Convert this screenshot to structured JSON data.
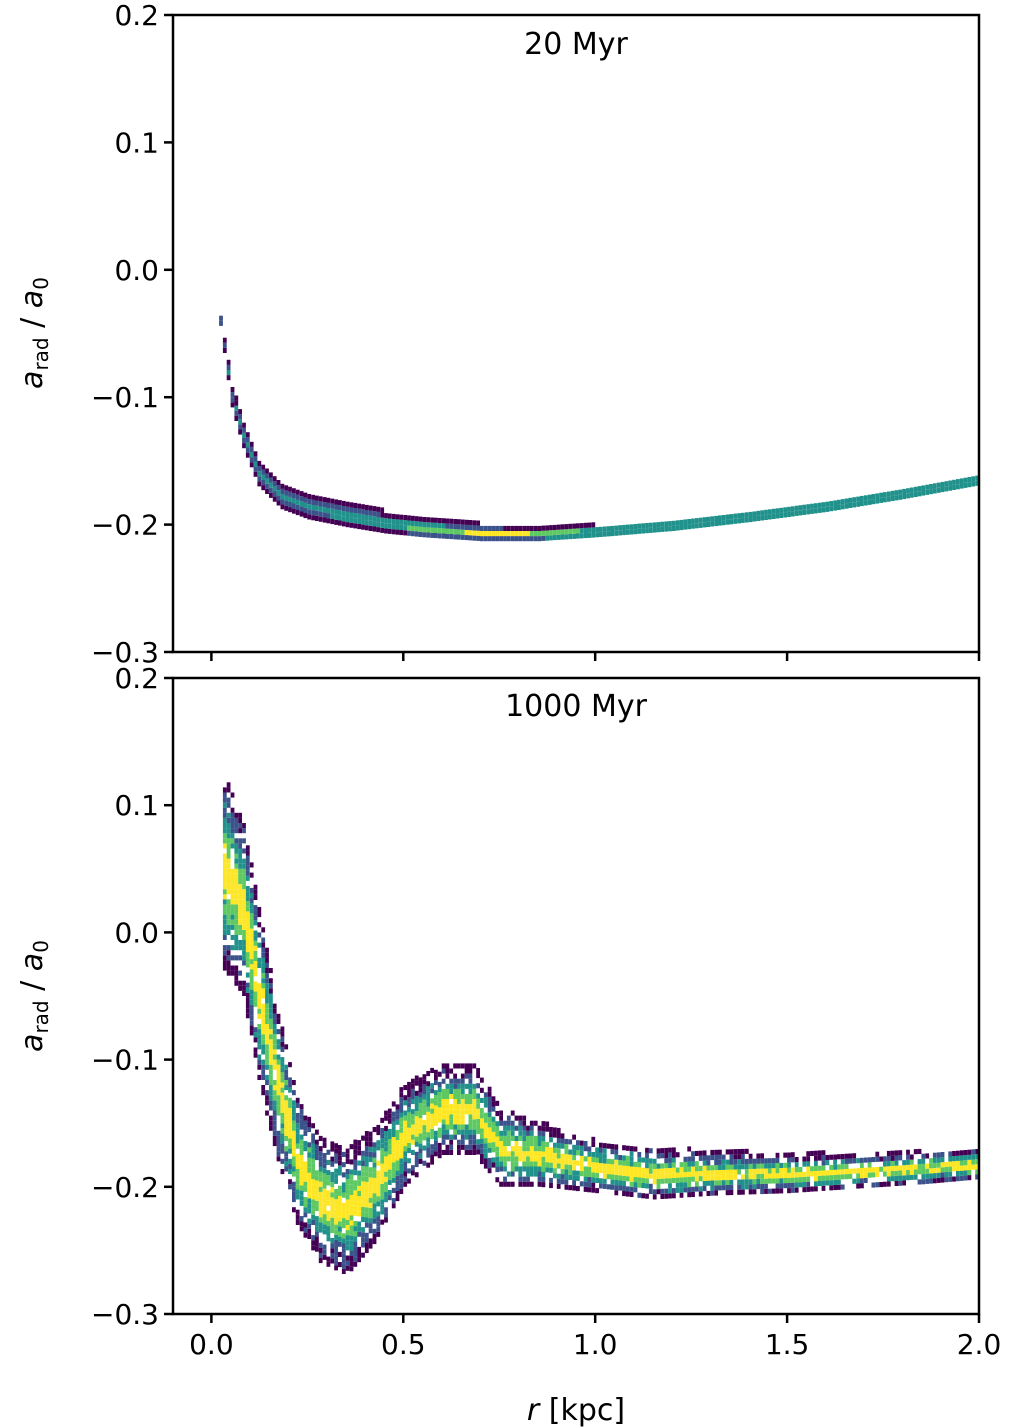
{
  "chart_data": {
    "type": "heatmap",
    "shared_x_axis": {
      "label_var": "r",
      "label_unit": "[kpc]",
      "lim": [
        -0.1,
        2.0
      ],
      "ticks": [
        0.0,
        0.5,
        1.0,
        1.5,
        2.0
      ],
      "tick_labels": [
        "0.0",
        "0.5",
        "1.0",
        "1.5",
        "2.0"
      ]
    },
    "colormap": [
      "#440154",
      "#3b528b",
      "#21918c",
      "#5ec962",
      "#fde725"
    ],
    "panels": [
      {
        "title": "20 Myr",
        "ylabel_main": "a",
        "ylabel_sub": "rad",
        "ylabel_sep": " / ",
        "ylabel_den": "a",
        "ylabel_den_sub": "0",
        "ylim": [
          -0.3,
          0.2
        ],
        "yticks": [
          0.2,
          0.1,
          0.0,
          -0.1,
          -0.2,
          -0.3
        ],
        "ytick_labels": [
          "0.2",
          "0.1",
          "0.0",
          "−0.1",
          "−0.2",
          "−0.3"
        ],
        "ridge": {
          "r": [
            0.02,
            0.05,
            0.08,
            0.12,
            0.18,
            0.25,
            0.35,
            0.45,
            0.55,
            0.7,
            0.85,
            1.0,
            1.2,
            1.4,
            1.6,
            1.8,
            2.0
          ],
          "a": [
            -0.04,
            -0.1,
            -0.13,
            -0.16,
            -0.178,
            -0.186,
            -0.193,
            -0.199,
            -0.203,
            -0.207,
            -0.208,
            -0.206,
            -0.201,
            -0.194,
            -0.186,
            -0.176,
            -0.165
          ],
          "width": [
            0.004,
            0.008,
            0.01,
            0.01,
            0.01,
            0.01,
            0.009,
            0.008,
            0.007,
            0.006,
            0.005,
            0.004,
            0.004,
            0.004,
            0.004,
            0.004,
            0.004
          ]
        }
      },
      {
        "title": "1000 Myr",
        "ylabel_main": "a",
        "ylabel_sub": "rad",
        "ylabel_sep": " / ",
        "ylabel_den": "a",
        "ylabel_den_sub": "0",
        "ylim": [
          -0.3,
          0.2
        ],
        "yticks": [
          0.2,
          0.1,
          0.0,
          -0.1,
          -0.2,
          -0.3
        ],
        "ytick_labels": [
          "0.2",
          "0.1",
          "0.0",
          "−0.1",
          "−0.2",
          "−0.3"
        ],
        "ridge": {
          "r": [
            0.03,
            0.08,
            0.12,
            0.17,
            0.22,
            0.28,
            0.35,
            0.42,
            0.5,
            0.6,
            0.68,
            0.75,
            0.85,
            1.0,
            1.15,
            1.3,
            1.5,
            1.7,
            1.85,
            2.0
          ],
          "a": [
            0.05,
            0.02,
            -0.05,
            -0.12,
            -0.18,
            -0.21,
            -0.22,
            -0.2,
            -0.16,
            -0.14,
            -0.14,
            -0.17,
            -0.175,
            -0.185,
            -0.19,
            -0.19,
            -0.19,
            -0.188,
            -0.186,
            -0.182
          ],
          "width": [
            0.08,
            0.07,
            0.07,
            0.06,
            0.05,
            0.05,
            0.05,
            0.045,
            0.04,
            0.035,
            0.035,
            0.03,
            0.025,
            0.02,
            0.02,
            0.017,
            0.015,
            0.013,
            0.012,
            0.012
          ]
        }
      }
    ]
  }
}
